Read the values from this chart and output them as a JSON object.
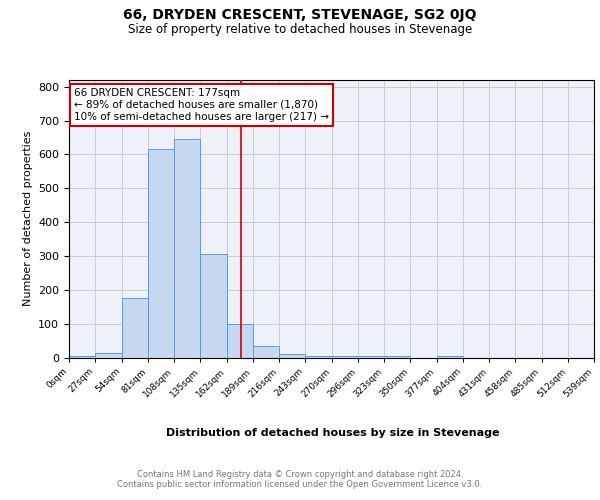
{
  "title": "66, DRYDEN CRESCENT, STEVENAGE, SG2 0JQ",
  "subtitle": "Size of property relative to detached houses in Stevenage",
  "xlabel": "Distribution of detached houses by size in Stevenage",
  "ylabel": "Number of detached properties",
  "bin_labels": [
    "0sqm",
    "27sqm",
    "54sqm",
    "81sqm",
    "108sqm",
    "135sqm",
    "162sqm",
    "189sqm",
    "216sqm",
    "243sqm",
    "270sqm",
    "296sqm",
    "323sqm",
    "350sqm",
    "377sqm",
    "404sqm",
    "431sqm",
    "458sqm",
    "485sqm",
    "512sqm",
    "539sqm"
  ],
  "bar_values": [
    5,
    13,
    175,
    615,
    645,
    305,
    100,
    35,
    10,
    5,
    5,
    3,
    5,
    0,
    3,
    0,
    0,
    0,
    0,
    0
  ],
  "bar_color": "#c6d9f0",
  "bar_edge_color": "#5b9bd5",
  "property_line_x": 177,
  "property_line_color": "#cc0000",
  "annotation_line1": "66 DRYDEN CRESCENT: 177sqm",
  "annotation_line2": "← 89% of detached houses are smaller (1,870)",
  "annotation_line3": "10% of semi-detached houses are larger (217) →",
  "annotation_box_color": "#ffffff",
  "annotation_box_edge_color": "#cc0000",
  "ylim": [
    0,
    820
  ],
  "yticks": [
    0,
    100,
    200,
    300,
    400,
    500,
    600,
    700,
    800
  ],
  "grid_color": "#cccccc",
  "background_color": "#eef2f8",
  "footer_text": "Contains HM Land Registry data © Crown copyright and database right 2024.\nContains public sector information licensed under the Open Government Licence v3.0.",
  "bin_width": 27,
  "n_bars": 20
}
